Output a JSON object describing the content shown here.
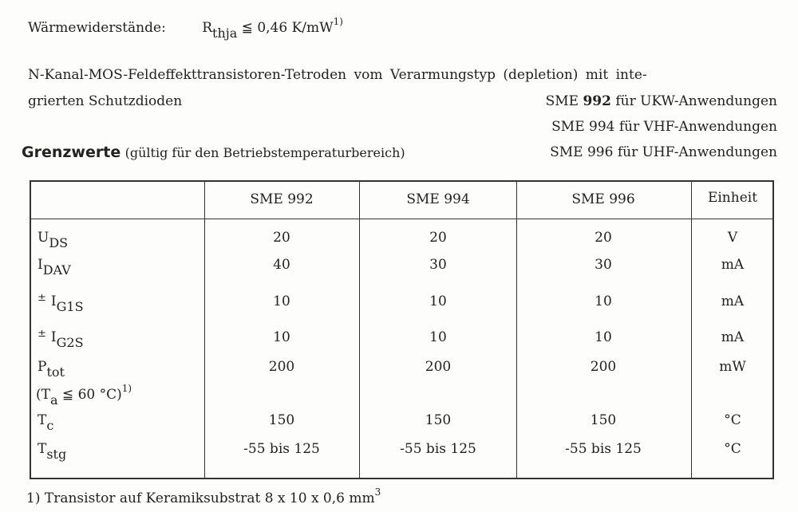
{
  "thermal": {
    "label": "Wärmewiderstände:",
    "symbol": "R",
    "subscript": "thja",
    "relation": "≦ 0,46 K/mW",
    "footnote_ref": "1)"
  },
  "description": {
    "line1": "N-Kanal-MOS-Feldeffekttransistoren-Tetroden vom Verarmungstyp (depletion) mit inte-",
    "line2": "grierten Schutzdioden"
  },
  "applications": [
    {
      "type": "SME",
      "number": "992",
      "text": "für UKW-Anwendungen"
    },
    {
      "type": "SME",
      "number": "994",
      "text": "für VHF-Anwendungen"
    },
    {
      "type": "SME",
      "number": "996",
      "text": "für UHF-Anwendungen"
    }
  ],
  "section": {
    "title": "Grenzwerte",
    "subtitle": "(gültig für den Betriebstemperaturbereich)"
  },
  "table": {
    "headers": [
      "",
      "SME 992",
      "SME 994",
      "SME 996",
      "Einheit"
    ],
    "rows": [
      {
        "prefix": "",
        "symbol": "U",
        "sub": "DS",
        "values": [
          "20",
          "20",
          "20"
        ],
        "unit": "V"
      },
      {
        "prefix": "",
        "symbol": "I",
        "sub": "DAV",
        "values": [
          "40",
          "30",
          "30"
        ],
        "unit": "mA"
      },
      {
        "prefix": "±",
        "symbol": "I",
        "sub": "G1S",
        "values": [
          "10",
          "10",
          "10"
        ],
        "unit": "mA"
      },
      {
        "prefix": "±",
        "symbol": "I",
        "sub": "G2S",
        "values": [
          "10",
          "10",
          "10"
        ],
        "unit": "mA"
      },
      {
        "prefix": "",
        "symbol": "P",
        "sub": "tot",
        "values": [
          "200",
          "200",
          "200"
        ],
        "unit": "mW",
        "condition": {
          "open": "(T",
          "sub": "a",
          "rest": " ≦ 60 °C)",
          "ref": "1)"
        }
      },
      {
        "prefix": "",
        "symbol": "T",
        "sub": "c",
        "values": [
          "150",
          "150",
          "150"
        ],
        "unit": "°C"
      },
      {
        "prefix": "",
        "symbol": "T",
        "sub": "stg",
        "values": [
          "-55 bis 125",
          "-55 bis 125",
          "-55 bis 125"
        ],
        "unit": "°C"
      }
    ]
  },
  "footnote": {
    "text": "1) Transistor auf Keramiksubstrat 8 x 10 x 0,6 mm",
    "sup": "3"
  }
}
